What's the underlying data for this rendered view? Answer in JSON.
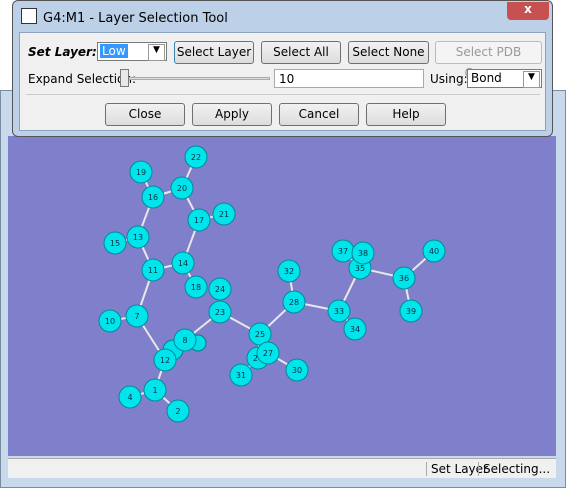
{
  "dialog": {
    "title": "G4:M1 - Layer Selection Tool",
    "set_layer_label": "Set Layer:",
    "layer_value": "Low",
    "select_layer": "Select Layer",
    "select_all": "Select All",
    "select_none": "Select None",
    "select_pdb": "Select PDB Group...",
    "expand_label": "Expand Selection:",
    "expand_value": "10",
    "using_label": "Using:",
    "using_value": "Bond",
    "close": "Close",
    "apply": "Apply",
    "cancel": "Cancel",
    "help": "Help"
  },
  "status": {
    "left": "Set Layer",
    "right": "Selecting..."
  },
  "molecule": {
    "atoms": [
      "1",
      "2",
      "4",
      "7",
      "8",
      "10",
      "11",
      "12",
      "13",
      "14",
      "15",
      "16",
      "17",
      "18",
      "19",
      "20",
      "21",
      "22",
      "23",
      "24",
      "25",
      "26",
      "27",
      "28",
      "31",
      "30",
      "32",
      "33",
      "34",
      "35",
      "36",
      "37",
      "38",
      "39",
      "40"
    ]
  }
}
